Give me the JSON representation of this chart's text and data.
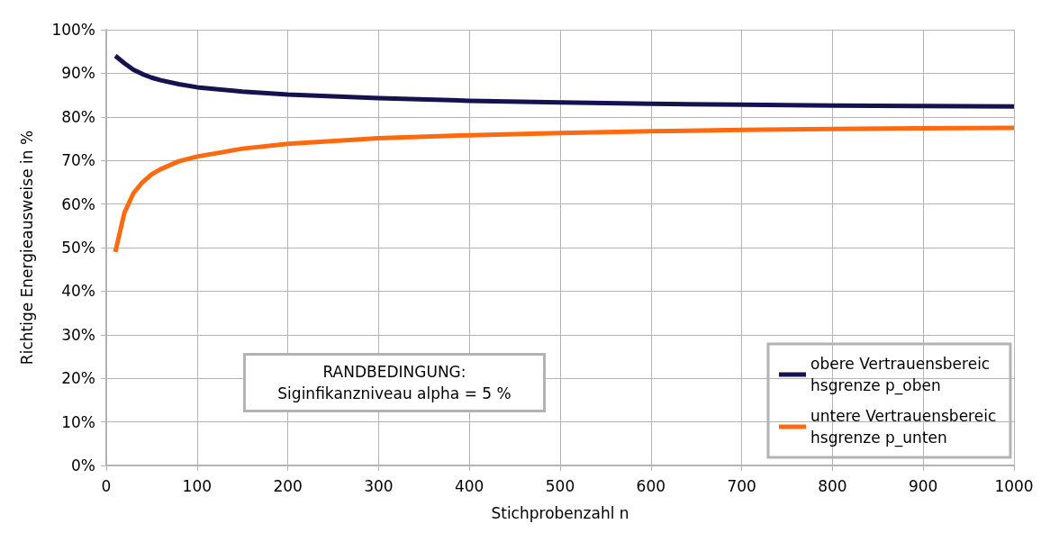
{
  "chart_data": {
    "type": "line",
    "xlabel": "Stichprobenzahl n",
    "ylabel": "Richtige Energieausweise in %",
    "x": [
      10,
      20,
      30,
      40,
      50,
      60,
      80,
      100,
      150,
      200,
      300,
      400,
      500,
      600,
      700,
      800,
      900,
      1000
    ],
    "series": [
      {
        "name": "obere Vertrauensbereichsgrenze p_oben",
        "color": "#14134f",
        "values": [
          94,
          92.3,
          90.8,
          89.8,
          89,
          88.4,
          87.5,
          86.8,
          85.8,
          85.1,
          84.3,
          83.7,
          83.3,
          83.0,
          82.8,
          82.6,
          82.5,
          82.4
        ]
      },
      {
        "name": "untere Vertrauensbereichsgrenze p_unten",
        "color": "#ff6a10",
        "values": [
          49,
          58,
          62.5,
          65,
          66.8,
          68,
          69.8,
          70.9,
          72.7,
          73.8,
          75.1,
          75.8,
          76.3,
          76.7,
          77.0,
          77.2,
          77.4,
          77.5
        ]
      }
    ],
    "xlim": [
      0,
      1000
    ],
    "xticks": [
      0,
      100,
      200,
      300,
      400,
      500,
      600,
      700,
      800,
      900,
      1000
    ],
    "ylim": [
      0,
      100
    ],
    "yticks": [
      {
        "value": 0,
        "label": "0%"
      },
      {
        "value": 10,
        "label": "10%"
      },
      {
        "value": 20,
        "label": "20%"
      },
      {
        "value": 30,
        "label": "30%"
      },
      {
        "value": 40,
        "label": "40%"
      },
      {
        "value": 50,
        "label": "50%"
      },
      {
        "value": 60,
        "label": "60%"
      },
      {
        "value": 70,
        "label": "70%"
      },
      {
        "value": 80,
        "label": "80%"
      },
      {
        "value": 90,
        "label": "90%"
      },
      {
        "value": 100,
        "label": "100%"
      }
    ],
    "annotations": [
      "RANDBEDINGUNG:\nSiginfikanzniveau alpha = 5 %"
    ],
    "grid": true,
    "legend": "bottom right",
    "marker": "none",
    "line_style": "solid"
  }
}
